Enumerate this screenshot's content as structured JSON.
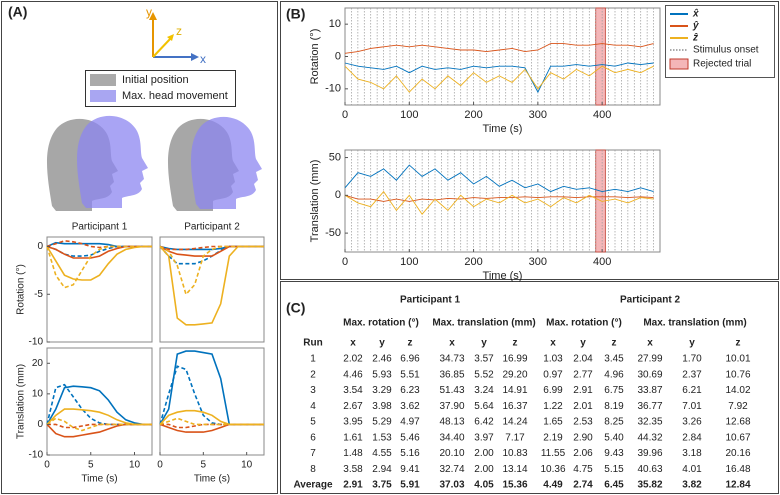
{
  "panel_labels": [
    "(A)",
    "(B)",
    "(C)"
  ],
  "axis_icon": {
    "x": "x",
    "y": "y",
    "z": "z"
  },
  "head_legend": [
    "Initial position",
    "Max. head movement"
  ],
  "chart_data": [
    {
      "type": "line",
      "title": "Participant 1",
      "ylabel": "Rotation (°)",
      "x": [
        0,
        1,
        2,
        3,
        4,
        5,
        6,
        7,
        8,
        9,
        10,
        11,
        12
      ],
      "xlim": [
        0,
        12
      ],
      "ylim": [
        -10,
        1
      ],
      "yticks": [
        0,
        -5,
        -10
      ],
      "series": [
        {
          "color": "#0072bd",
          "dash": false,
          "values": [
            0,
            0.4,
            0.3,
            0.3,
            0.3,
            0.3,
            0.3,
            0.2,
            0,
            0,
            0,
            0,
            0
          ]
        },
        {
          "color": "#0072bd",
          "dash": true,
          "values": [
            0,
            -0.3,
            -0.8,
            -1,
            -1,
            -0.9,
            -0.5,
            -0.2,
            0,
            0,
            0,
            0,
            0
          ]
        },
        {
          "color": "#d95319",
          "dash": false,
          "values": [
            0,
            -0.3,
            -0.8,
            -1.2,
            -1.2,
            -1.2,
            -1,
            -0.5,
            -0.2,
            0,
            0,
            0,
            0
          ]
        },
        {
          "color": "#d95319",
          "dash": true,
          "values": [
            0,
            0.3,
            0.6,
            0.5,
            0.3,
            0,
            -0.1,
            0,
            0,
            0,
            0,
            0,
            0
          ]
        },
        {
          "color": "#edb120",
          "dash": false,
          "values": [
            0,
            -1.5,
            -3,
            -3.4,
            -3.5,
            -3.5,
            -3,
            -1.8,
            -0.8,
            -0.3,
            -0.1,
            0,
            0
          ]
        },
        {
          "color": "#edb120",
          "dash": true,
          "values": [
            0,
            -3,
            -4.3,
            -4,
            -2.5,
            -1,
            -0.3,
            0,
            0,
            0,
            0,
            0,
            0
          ]
        }
      ]
    },
    {
      "type": "line",
      "title": "Participant 2",
      "x": [
        0,
        1,
        2,
        3,
        4,
        5,
        6,
        7,
        8,
        9,
        10,
        11,
        12
      ],
      "xlim": [
        0,
        12
      ],
      "ylim": [
        -10,
        1
      ],
      "series": [
        {
          "color": "#0072bd",
          "dash": false,
          "values": [
            0,
            -0.2,
            -0.3,
            -0.3,
            -0.3,
            -0.3,
            -0.3,
            -0.2,
            0,
            0,
            0,
            0,
            0
          ]
        },
        {
          "color": "#0072bd",
          "dash": true,
          "values": [
            0,
            -1,
            -1.8,
            -1.8,
            -1.8,
            -1.5,
            -1,
            -0.4,
            0,
            0,
            0,
            0,
            0
          ]
        },
        {
          "color": "#d95319",
          "dash": false,
          "values": [
            0,
            -0.5,
            -0.8,
            -0.9,
            -1,
            -1,
            -1,
            -0.5,
            0,
            0,
            0,
            0,
            0
          ]
        },
        {
          "color": "#d95319",
          "dash": true,
          "values": [
            0,
            -0.3,
            -0.3,
            -0.3,
            -0.2,
            -0.1,
            0,
            0,
            0,
            0,
            0,
            0,
            0
          ]
        },
        {
          "color": "#edb120",
          "dash": false,
          "values": [
            0,
            -1,
            -7.5,
            -8.2,
            -8.2,
            -8.1,
            -8,
            -6,
            -1,
            0,
            0,
            0,
            0
          ]
        },
        {
          "color": "#edb120",
          "dash": true,
          "values": [
            0,
            -0.5,
            -2,
            -5,
            -4,
            -1,
            -0.3,
            0,
            0,
            0,
            0,
            0,
            0
          ]
        }
      ]
    },
    {
      "type": "line",
      "ylabel": "Translation (mm)",
      "xlabel": "Time (s)",
      "x": [
        0,
        1,
        2,
        3,
        4,
        5,
        6,
        7,
        8,
        9,
        10,
        11,
        12
      ],
      "xlim": [
        0,
        12
      ],
      "ylim": [
        -10,
        25
      ],
      "xticks": [
        0,
        5,
        10
      ],
      "yticks": [
        20,
        10,
        0,
        -10
      ],
      "series": [
        {
          "color": "#0072bd",
          "dash": false,
          "values": [
            0,
            5,
            12,
            12.5,
            12.3,
            12,
            11,
            8,
            4,
            1.5,
            0.5,
            0,
            0
          ]
        },
        {
          "color": "#0072bd",
          "dash": true,
          "values": [
            0,
            12,
            13,
            9,
            5,
            2,
            0.5,
            0,
            0,
            0,
            0,
            0,
            0
          ]
        },
        {
          "color": "#d95319",
          "dash": false,
          "values": [
            0,
            -3,
            -4,
            -4,
            -3.5,
            -3,
            -2.5,
            -1.5,
            -0.5,
            0,
            0,
            0,
            0
          ]
        },
        {
          "color": "#d95319",
          "dash": true,
          "values": [
            0,
            0,
            -1,
            -1,
            -0.5,
            0,
            0,
            0,
            0,
            0,
            0,
            0,
            0
          ]
        },
        {
          "color": "#edb120",
          "dash": false,
          "values": [
            0,
            3,
            5,
            5,
            4.8,
            4.5,
            4,
            3,
            1.5,
            0.5,
            0,
            0,
            0
          ]
        },
        {
          "color": "#edb120",
          "dash": true,
          "values": [
            0,
            2,
            1,
            -1,
            -2,
            -1,
            0,
            0,
            0,
            0,
            0,
            0,
            0
          ]
        }
      ]
    },
    {
      "type": "line",
      "xlabel": "Time (s)",
      "x": [
        0,
        1,
        2,
        3,
        4,
        5,
        6,
        7,
        8,
        9,
        10,
        11,
        12
      ],
      "xlim": [
        0,
        12
      ],
      "ylim": [
        -10,
        25
      ],
      "xticks": [
        0,
        5,
        10
      ],
      "series": [
        {
          "color": "#0072bd",
          "dash": false,
          "values": [
            0,
            5,
            23,
            24,
            24,
            23.5,
            23,
            15,
            0,
            0,
            0,
            0,
            0
          ]
        },
        {
          "color": "#0072bd",
          "dash": true,
          "values": [
            0,
            10,
            19,
            18,
            10,
            3,
            0.5,
            0,
            0,
            0,
            0,
            0,
            0
          ]
        },
        {
          "color": "#d95319",
          "dash": false,
          "values": [
            0,
            -1,
            -2,
            -2.5,
            -2.5,
            -2.5,
            -2,
            -1,
            0,
            0,
            0,
            0,
            0
          ]
        },
        {
          "color": "#d95319",
          "dash": true,
          "values": [
            0,
            0,
            -1,
            -1,
            -0.5,
            0,
            0,
            0,
            0,
            0,
            0,
            0,
            0
          ]
        },
        {
          "color": "#edb120",
          "dash": false,
          "values": [
            0,
            3,
            4,
            4.5,
            4.5,
            4,
            3,
            1,
            0,
            0,
            0,
            0,
            0
          ]
        },
        {
          "color": "#edb120",
          "dash": true,
          "values": [
            0,
            1,
            2,
            1,
            0,
            0,
            0,
            0,
            0,
            0,
            0,
            0,
            0
          ]
        }
      ]
    },
    {
      "type": "line",
      "ylabel": "Rotation (°)",
      "xlabel": "Time (s)",
      "legend": "outside-right",
      "onset_label": "Stimulus onset",
      "rejected_label": "Rejected trial",
      "x": [
        0,
        20,
        40,
        60,
        80,
        100,
        120,
        140,
        160,
        180,
        200,
        220,
        240,
        260,
        280,
        300,
        320,
        340,
        360,
        380,
        400,
        420,
        440,
        460,
        480
      ],
      "xlim": [
        0,
        490
      ],
      "ylim": [
        -15,
        15
      ],
      "xticks": [
        0,
        100,
        200,
        300,
        400
      ],
      "yticks": [
        -10,
        0,
        10
      ],
      "stimulus_onsets": [
        10,
        20,
        30,
        40,
        50,
        60,
        70,
        80,
        90,
        100,
        110,
        120,
        130,
        140,
        150,
        160,
        170,
        180,
        190,
        200,
        210,
        220,
        230,
        240,
        250,
        260,
        270,
        280,
        290,
        300,
        310,
        320,
        330,
        340,
        350,
        360,
        370,
        380,
        390,
        400,
        410,
        420,
        430,
        440,
        450,
        460,
        470,
        480
      ],
      "rejected_trial": [
        390,
        405
      ],
      "series": [
        {
          "name": "x̂",
          "color": "#0072bd",
          "values": [
            -2,
            -3,
            -3.5,
            -4,
            -3,
            -5,
            -3,
            -4,
            -3.5,
            -4,
            -3,
            -3.5,
            -3,
            -3,
            -3.5,
            -11,
            -3,
            -3,
            -2.5,
            -3,
            -2.5,
            -3,
            -2,
            -2.5,
            -2
          ]
        },
        {
          "name": "ŷ",
          "color": "#d95319",
          "values": [
            1,
            1.5,
            2.5,
            3,
            3.5,
            3,
            3.5,
            3,
            2.5,
            2,
            2,
            1.5,
            2,
            2.5,
            1.5,
            2,
            4,
            4,
            3.5,
            3.5,
            4,
            3.5,
            3.5,
            3,
            4
          ]
        },
        {
          "name": "ẑ",
          "color": "#edb120",
          "values": [
            -3,
            -7,
            -8,
            -10,
            -6,
            -11,
            -7,
            -10,
            -6,
            -9,
            -5,
            -8,
            -6,
            -8,
            -4,
            -10,
            -5,
            -7,
            -4,
            -6,
            -3,
            -5,
            -4,
            -5,
            -3
          ]
        }
      ]
    },
    {
      "type": "line",
      "ylabel": "Translation (mm)",
      "xlabel": "Time (s)",
      "x": [
        0,
        20,
        40,
        60,
        80,
        100,
        120,
        140,
        160,
        180,
        200,
        220,
        240,
        260,
        280,
        300,
        320,
        340,
        360,
        380,
        400,
        420,
        440,
        460,
        480
      ],
      "xlim": [
        0,
        490
      ],
      "ylim": [
        -75,
        60
      ],
      "xticks": [
        0,
        100,
        200,
        300,
        400
      ],
      "yticks": [
        -50,
        0,
        50
      ],
      "stimulus_onsets": [
        10,
        20,
        30,
        40,
        50,
        60,
        70,
        80,
        90,
        100,
        110,
        120,
        130,
        140,
        150,
        160,
        170,
        180,
        190,
        200,
        210,
        220,
        230,
        240,
        250,
        260,
        270,
        280,
        290,
        300,
        310,
        320,
        330,
        340,
        350,
        360,
        370,
        380,
        390,
        400,
        410,
        420,
        430,
        440,
        450,
        460,
        470,
        480
      ],
      "rejected_trial": [
        390,
        405
      ],
      "series": [
        {
          "color": "#0072bd",
          "values": [
            10,
            30,
            25,
            35,
            20,
            40,
            25,
            35,
            20,
            30,
            15,
            25,
            12,
            20,
            10,
            15,
            5,
            12,
            8,
            10,
            5,
            8,
            5,
            10,
            5
          ]
        },
        {
          "color": "#d95319",
          "values": [
            0,
            -5,
            -5,
            -8,
            -5,
            -8,
            -5,
            -6,
            -4,
            -5,
            -3,
            -4,
            -3,
            -3,
            -2,
            -3,
            -2,
            -2,
            -3,
            -2,
            -2,
            -2,
            -3,
            -2,
            -3
          ]
        },
        {
          "color": "#edb120",
          "values": [
            0,
            -10,
            -15,
            5,
            -20,
            0,
            -25,
            -5,
            -20,
            0,
            -15,
            -5,
            -10,
            0,
            -10,
            -5,
            -15,
            -3,
            -10,
            0,
            -8,
            -5,
            -10,
            -3,
            -5
          ]
        }
      ]
    }
  ],
  "table": {
    "group_headers": [
      "Participant 1",
      "Participant 2"
    ],
    "sub_headers": [
      "Max. rotation (°)",
      "Max. translation (mm)",
      "Max. rotation (°)",
      "Max. translation (mm)"
    ],
    "columns": [
      "Run",
      "x",
      "y",
      "z",
      "x",
      "y",
      "z",
      "x",
      "y",
      "z",
      "x",
      "y",
      "z"
    ],
    "rows": [
      [
        "1",
        "2.02",
        "2.46",
        "6.96",
        "34.73",
        "3.57",
        "16.99",
        "1.03",
        "2.04",
        "3.45",
        "27.99",
        "1.70",
        "10.01"
      ],
      [
        "2",
        "4.46",
        "5.93",
        "5.51",
        "36.85",
        "5.52",
        "29.20",
        "0.97",
        "2.77",
        "4.96",
        "30.69",
        "2.37",
        "10.76"
      ],
      [
        "3",
        "3.54",
        "3.29",
        "6.23",
        "51.43",
        "3.24",
        "14.91",
        "6.99",
        "2.91",
        "6.75",
        "33.87",
        "6.21",
        "14.02"
      ],
      [
        "4",
        "2.67",
        "3.98",
        "3.62",
        "37.90",
        "5.64",
        "16.37",
        "1.22",
        "2.01",
        "8.19",
        "36.77",
        "7.01",
        "7.92"
      ],
      [
        "5",
        "3.95",
        "5.29",
        "4.97",
        "48.13",
        "6.42",
        "14.24",
        "1.65",
        "2.53",
        "8.25",
        "32.35",
        "3.26",
        "12.68"
      ],
      [
        "6",
        "1.61",
        "1.53",
        "5.46",
        "34.40",
        "3.97",
        "7.17",
        "2.19",
        "2.90",
        "5.40",
        "44.32",
        "2.84",
        "10.67"
      ],
      [
        "7",
        "1.48",
        "4.55",
        "5.16",
        "20.10",
        "2.00",
        "10.83",
        "11.55",
        "2.06",
        "9.43",
        "39.96",
        "3.18",
        "20.16"
      ],
      [
        "8",
        "3.58",
        "2.94",
        "9.41",
        "32.74",
        "2.00",
        "13.14",
        "10.36",
        "4.75",
        "5.15",
        "40.63",
        "4.01",
        "16.48"
      ],
      [
        "Average",
        "2.91",
        "3.75",
        "5.91",
        "37.03",
        "4.05",
        "15.36",
        "4.49",
        "2.74",
        "6.45",
        "35.82",
        "3.82",
        "12.84"
      ]
    ]
  }
}
